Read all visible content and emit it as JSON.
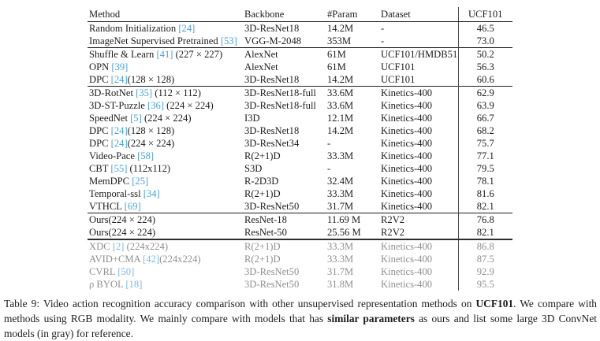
{
  "colors": {
    "citation_blue": "#4aa3d9",
    "citation_blue_light": "#7db9e0",
    "gray_text": "#8f8f8f"
  },
  "table": {
    "columns": [
      "Method",
      "Backbone",
      "#Param",
      "Dataset",
      "UCF101"
    ],
    "rows": [
      {
        "method_pre": "Random Initialization ",
        "cite": "[24]",
        "method_post": "",
        "backbone": "3D-ResNet18",
        "param": "14.2M",
        "dataset": "-",
        "value": "46.5",
        "rule": "",
        "gray": false,
        "param_bold": false,
        "value_bold": false
      },
      {
        "method_pre": "ImageNet Supervised Pretrained ",
        "cite": "[53]",
        "method_post": "",
        "backbone": "VGG-M-2048",
        "param": "353M",
        "dataset": "-",
        "value": "73.0",
        "rule": "",
        "gray": false,
        "param_bold": false,
        "value_bold": false
      },
      {
        "method_pre": "Shuffle & Learn ",
        "cite": "[41]",
        "method_post": " (227 × 227)",
        "backbone": "AlexNet",
        "param": "61M",
        "dataset": "UCF101/HMDB51",
        "value": "50.2",
        "rule": "thin",
        "gray": false,
        "param_bold": false,
        "value_bold": false
      },
      {
        "method_pre": "OPN ",
        "cite": "[39]",
        "method_post": "",
        "backbone": "AlexNet",
        "param": "61M",
        "dataset": "UCF101",
        "value": "56.3",
        "rule": "",
        "gray": false,
        "param_bold": false,
        "value_bold": false
      },
      {
        "method_pre": "DPC ",
        "cite": "[24]",
        "method_post": "(128 × 128)",
        "backbone": "3D-ResNet18",
        "param": "14.2M",
        "dataset": "UCF101",
        "value": "60.6",
        "rule": "",
        "gray": false,
        "param_bold": false,
        "value_bold": false
      },
      {
        "method_pre": "3D-RotNet ",
        "cite": "[35]",
        "method_post": " (112 × 112)",
        "backbone": "3D-ResNet18-full",
        "param": "33.6M",
        "dataset": "Kinetics-400",
        "value": "62.9",
        "rule": "thin",
        "gray": false,
        "param_bold": false,
        "value_bold": false
      },
      {
        "method_pre": "3D-ST-Puzzle ",
        "cite": "[36]",
        "method_post": " (224 × 224)",
        "backbone": "3D-ResNet18-full",
        "param": "33.6M",
        "dataset": "Kinetics-400",
        "value": "63.9",
        "rule": "",
        "gray": false,
        "param_bold": false,
        "value_bold": false
      },
      {
        "method_pre": "SpeedNet ",
        "cite": "[5]",
        "method_post": " (224 × 224)",
        "backbone": "I3D",
        "param": "12.1M",
        "dataset": "Kinetics-400",
        "value": "66.7",
        "rule": "",
        "gray": false,
        "param_bold": false,
        "value_bold": false
      },
      {
        "method_pre": "DPC ",
        "cite": "[24]",
        "method_post": "(128 × 128)",
        "backbone": "3D-ResNet18",
        "param": "14.2M",
        "dataset": "Kinetics-400",
        "value": "68.2",
        "rule": "",
        "gray": false,
        "param_bold": false,
        "value_bold": false
      },
      {
        "method_pre": "DPC ",
        "cite": "[24]",
        "method_post": "(224 × 224)",
        "backbone": "3D-ResNet34",
        "param": "-",
        "dataset": "Kinetics-400",
        "value": "75.7",
        "rule": "",
        "gray": false,
        "param_bold": false,
        "value_bold": false
      },
      {
        "method_pre": "Video-Pace ",
        "cite": "[58]",
        "method_post": "",
        "backbone": "R(2+1)D",
        "param": "33.3M",
        "dataset": "Kinetics-400",
        "value": "77.1",
        "rule": "",
        "gray": false,
        "param_bold": false,
        "value_bold": false
      },
      {
        "method_pre": "CBT ",
        "cite": "[55]",
        "method_post": " (112x112)",
        "backbone": "S3D",
        "param": "-",
        "dataset": "Kinetics-400",
        "value": "79.5",
        "rule": "",
        "gray": false,
        "param_bold": false,
        "value_bold": false
      },
      {
        "method_pre": "MemDPC ",
        "cite": "[25]",
        "method_post": "",
        "backbone": "R-2D3D",
        "param": "32.4M",
        "dataset": "Kinetics-400",
        "value": "78.1",
        "rule": "",
        "gray": false,
        "param_bold": false,
        "value_bold": false
      },
      {
        "method_pre": "Temporal-ssl ",
        "cite": "[34]",
        "method_post": "",
        "backbone": "R(2+1)D",
        "param": "33.3M",
        "dataset": "Kinetics-400",
        "value": "81.6",
        "rule": "",
        "gray": false,
        "param_bold": false,
        "value_bold": false
      },
      {
        "method_pre": "VTHCL ",
        "cite": "[69]",
        "method_post": "",
        "backbone": "3D-ResNet50",
        "param": "31.7M",
        "dataset": "Kinetics-400",
        "value": "82.1",
        "rule": "",
        "gray": false,
        "param_bold": false,
        "value_bold": false
      },
      {
        "method_pre": "Ours(224 × 224)",
        "cite": "",
        "method_post": "",
        "backbone": "ResNet-18",
        "param": "11.69 M",
        "dataset": "R2V2",
        "value": "76.8",
        "rule": "thin",
        "gray": false,
        "param_bold": true,
        "value_bold": false
      },
      {
        "method_pre": "Ours(224 × 224)",
        "cite": "",
        "method_post": "",
        "backbone": "ResNet-50",
        "param": "25.56 M",
        "dataset": "R2V2",
        "value": "82.1",
        "rule": "",
        "gray": false,
        "param_bold": true,
        "value_bold": true
      },
      {
        "method_pre": "XDC ",
        "cite": "[2]",
        "method_post": " (224x224)",
        "backbone": "R(2+1)D",
        "param": "33.3M",
        "dataset": "Kinetics-400",
        "value": "86.8",
        "rule": "thick",
        "gray": true,
        "param_bold": false,
        "value_bold": false
      },
      {
        "method_pre": "AVID+CMA ",
        "cite": "[42]",
        "method_post": "(224x224)",
        "backbone": "R(2+1)D",
        "param": "33.3M",
        "dataset": "Kinetics-400",
        "value": "87.5",
        "rule": "",
        "gray": true,
        "param_bold": false,
        "value_bold": false
      },
      {
        "method_pre": "CVRL ",
        "cite": "[50]",
        "method_post": "",
        "backbone": "3D-ResNet50",
        "param": "31.7M",
        "dataset": "Kinetics-400",
        "value": "92.9",
        "rule": "",
        "gray": true,
        "param_bold": false,
        "value_bold": false
      },
      {
        "method_pre": "ρ BYOL ",
        "cite": "[18]",
        "method_post": "",
        "backbone": "3D-ResNet50",
        "param": "31.8M",
        "dataset": "Kinetics-400",
        "value": "95.5",
        "rule": "",
        "gray": true,
        "param_bold": false,
        "value_bold": false
      }
    ]
  },
  "caption_parts": [
    {
      "text": "Table 9: Video action recognition accuracy comparison with other unsupervised representation methods on ",
      "bold": false
    },
    {
      "text": "UCF101",
      "bold": true
    },
    {
      "text": ". We compare with methods using RGB modality. We mainly compare with models that has ",
      "bold": false
    },
    {
      "text": "similar parameters",
      "bold": true
    },
    {
      "text": " as ours and list some large 3D ConvNet models (in gray) for reference.",
      "bold": false
    }
  ]
}
